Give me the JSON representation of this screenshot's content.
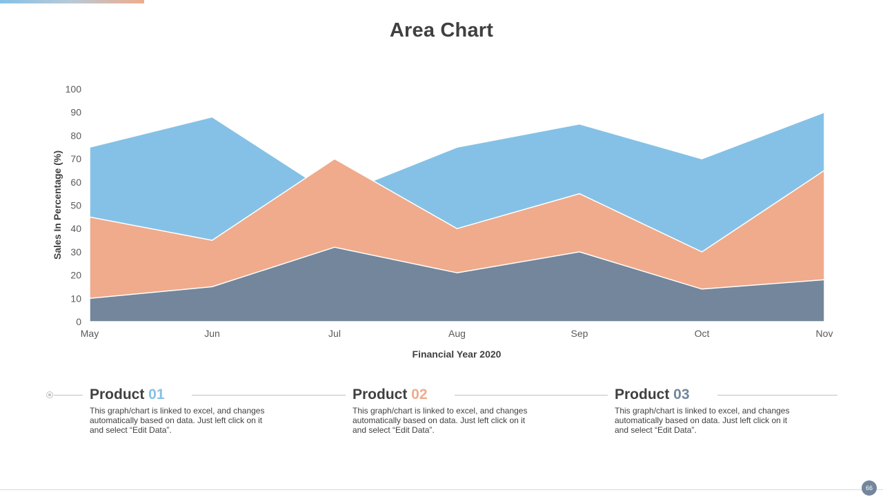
{
  "title": "Area Chart",
  "chart_data": {
    "type": "area",
    "categories": [
      "May",
      "Jun",
      "Jul",
      "Aug",
      "Sep",
      "Oct",
      "Nov"
    ],
    "series": [
      {
        "name": "Product 01",
        "values": [
          75,
          88,
          54,
          75,
          85,
          70,
          90
        ],
        "color": "#85c1e6"
      },
      {
        "name": "Product 02",
        "values": [
          45,
          35,
          70,
          40,
          55,
          30,
          65
        ],
        "color": "#efab8c"
      },
      {
        "name": "Product 03",
        "values": [
          10,
          15,
          32,
          21,
          30,
          14,
          18
        ],
        "color": "#73869b"
      }
    ],
    "y_ticks": [
      0,
      10,
      20,
      30,
      40,
      50,
      60,
      70,
      80,
      90,
      100
    ],
    "ylim": [
      0,
      100
    ],
    "xlabel": "Financial Year 2020",
    "ylabel": "Sales In Percentage (%)"
  },
  "products": [
    {
      "label": "Product ",
      "number": "01",
      "color": "#85c1e6",
      "description": "This graph/chart is linked to excel,  and changes automatically based on data. Just left click on it and select “Edit Data”."
    },
    {
      "label": "Product ",
      "number": "02",
      "color": "#efab8c",
      "description": "This graph/chart is linked to excel,  and changes automatically based on data. Just left click on it and select “Edit Data”."
    },
    {
      "label": "Product ",
      "number": "03",
      "color": "#73869b",
      "description": "This graph/chart is linked to excel,  and changes automatically based on data. Just left click on it and select “Edit Data”."
    }
  ],
  "page_number": "66"
}
